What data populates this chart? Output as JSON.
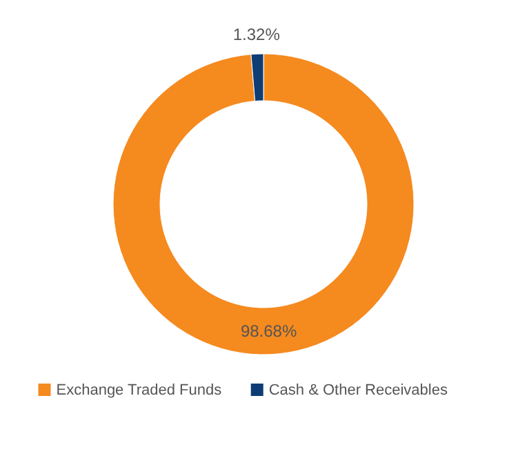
{
  "chart_data": {
    "type": "donut",
    "categories": [
      "Exchange Traded Funds",
      "Cash & Other Receivables"
    ],
    "values": [
      98.68,
      1.32
    ],
    "colors": [
      "#f58a1f",
      "#0e3d75"
    ],
    "value_labels": [
      "98.68%",
      "1.32%"
    ],
    "legend": "bottom"
  }
}
